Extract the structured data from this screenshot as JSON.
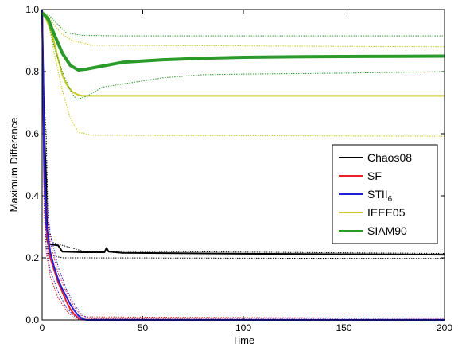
{
  "chart_data": {
    "type": "line",
    "title": "",
    "xlabel": "Time",
    "ylabel": "Maximum Difference",
    "xlim": [
      0,
      200
    ],
    "ylim": [
      0,
      1
    ],
    "x_ticks": [
      "0",
      "50",
      "100",
      "150",
      "200"
    ],
    "y_ticks": [
      "0.0",
      "0.2",
      "0.4",
      "0.6",
      "0.8",
      "1.0"
    ],
    "grid": false,
    "legend_position": "right",
    "series": [
      {
        "name": "Chaos08",
        "color": "#000000",
        "mean": [
          [
            0,
            1.0
          ],
          [
            1,
            0.62
          ],
          [
            2,
            0.45
          ],
          [
            2.5,
            0.26
          ],
          [
            3,
            0.245
          ],
          [
            8,
            0.24
          ],
          [
            10,
            0.22
          ],
          [
            20,
            0.218
          ],
          [
            31,
            0.218
          ],
          [
            32,
            0.232
          ],
          [
            33,
            0.22
          ],
          [
            40,
            0.216
          ],
          [
            100,
            0.213
          ],
          [
            200,
            0.21
          ]
        ],
        "upper": [
          [
            0,
            1.0
          ],
          [
            1,
            0.7
          ],
          [
            2,
            0.6
          ],
          [
            3,
            0.3
          ],
          [
            5,
            0.25
          ],
          [
            20,
            0.222
          ],
          [
            200,
            0.214
          ]
        ],
        "lower": [
          [
            0,
            1.0
          ],
          [
            1,
            0.5
          ],
          [
            2,
            0.3
          ],
          [
            3,
            0.21
          ],
          [
            10,
            0.2
          ],
          [
            200,
            0.198
          ]
        ]
      },
      {
        "name": "SF",
        "color": "#e8202a",
        "mean": [
          [
            0,
            1.0
          ],
          [
            1,
            0.45
          ],
          [
            2,
            0.3
          ],
          [
            4,
            0.2
          ],
          [
            6,
            0.16
          ],
          [
            8,
            0.12
          ],
          [
            10,
            0.09
          ],
          [
            12,
            0.06
          ],
          [
            14,
            0.035
          ],
          [
            16,
            0.018
          ],
          [
            18,
            0.006
          ],
          [
            20,
            0.001
          ],
          [
            200,
            0.0
          ]
        ],
        "upper": [
          [
            0,
            1.0
          ],
          [
            1,
            0.55
          ],
          [
            2,
            0.38
          ],
          [
            4,
            0.25
          ],
          [
            8,
            0.15
          ],
          [
            12,
            0.09
          ],
          [
            16,
            0.04
          ],
          [
            20,
            0.01
          ],
          [
            200,
            0.005
          ]
        ],
        "lower": [
          [
            0,
            1.0
          ],
          [
            1,
            0.35
          ],
          [
            2,
            0.22
          ],
          [
            4,
            0.14
          ],
          [
            8,
            0.07
          ],
          [
            12,
            0.03
          ],
          [
            16,
            0.005
          ],
          [
            20,
            0.0
          ],
          [
            200,
            0.0
          ]
        ]
      },
      {
        "name": "STII6",
        "label_main": "STII",
        "label_sub": "6",
        "color": "#2020d8",
        "mean": [
          [
            0,
            1.0
          ],
          [
            1,
            0.5
          ],
          [
            2,
            0.32
          ],
          [
            4,
            0.22
          ],
          [
            6,
            0.17
          ],
          [
            8,
            0.13
          ],
          [
            10,
            0.1
          ],
          [
            12,
            0.075
          ],
          [
            14,
            0.05
          ],
          [
            16,
            0.03
          ],
          [
            18,
            0.014
          ],
          [
            20,
            0.004
          ],
          [
            22,
            0.0
          ],
          [
            200,
            0.0
          ]
        ],
        "upper": [
          [
            0,
            1.0
          ],
          [
            1,
            0.6
          ],
          [
            2,
            0.4
          ],
          [
            4,
            0.28
          ],
          [
            8,
            0.17
          ],
          [
            12,
            0.1
          ],
          [
            16,
            0.05
          ],
          [
            20,
            0.015
          ],
          [
            24,
            0.005
          ],
          [
            200,
            0.005
          ]
        ],
        "lower": [
          [
            0,
            1.0
          ],
          [
            1,
            0.4
          ],
          [
            2,
            0.24
          ],
          [
            4,
            0.16
          ],
          [
            8,
            0.09
          ],
          [
            12,
            0.04
          ],
          [
            16,
            0.012
          ],
          [
            20,
            0.0
          ],
          [
            200,
            0.0
          ]
        ]
      },
      {
        "name": "IEEE05",
        "color": "#c8c81e",
        "mean": [
          [
            0,
            0.99
          ],
          [
            2,
            0.97
          ],
          [
            5,
            0.92
          ],
          [
            8,
            0.84
          ],
          [
            10,
            0.79
          ],
          [
            12,
            0.76
          ],
          [
            15,
            0.735
          ],
          [
            18,
            0.725
          ],
          [
            20,
            0.722
          ],
          [
            200,
            0.722
          ]
        ],
        "upper": [
          [
            0,
            0.99
          ],
          [
            3,
            0.98
          ],
          [
            6,
            0.95
          ],
          [
            10,
            0.92
          ],
          [
            15,
            0.9
          ],
          [
            25,
            0.885
          ],
          [
            200,
            0.88
          ]
        ],
        "lower": [
          [
            0,
            0.99
          ],
          [
            3,
            0.96
          ],
          [
            6,
            0.86
          ],
          [
            10,
            0.74
          ],
          [
            14,
            0.65
          ],
          [
            18,
            0.605
          ],
          [
            25,
            0.595
          ],
          [
            200,
            0.592
          ]
        ]
      },
      {
        "name": "SIAM90",
        "color": "#2a9a2a",
        "mean": [
          [
            0,
            0.99
          ],
          [
            3,
            0.97
          ],
          [
            6,
            0.92
          ],
          [
            10,
            0.86
          ],
          [
            14,
            0.82
          ],
          [
            18,
            0.805
          ],
          [
            22,
            0.808
          ],
          [
            30,
            0.818
          ],
          [
            40,
            0.83
          ],
          [
            60,
            0.838
          ],
          [
            80,
            0.843
          ],
          [
            100,
            0.846
          ],
          [
            130,
            0.848
          ],
          [
            160,
            0.849
          ],
          [
            200,
            0.85
          ]
        ],
        "upper": [
          [
            0,
            0.99
          ],
          [
            3,
            0.985
          ],
          [
            8,
            0.95
          ],
          [
            12,
            0.925
          ],
          [
            20,
            0.917
          ],
          [
            40,
            0.915
          ],
          [
            200,
            0.915
          ]
        ],
        "lower": [
          [
            0,
            0.99
          ],
          [
            3,
            0.96
          ],
          [
            6,
            0.88
          ],
          [
            10,
            0.8
          ],
          [
            14,
            0.74
          ],
          [
            17,
            0.71
          ],
          [
            22,
            0.72
          ],
          [
            30,
            0.75
          ],
          [
            40,
            0.76
          ],
          [
            60,
            0.78
          ],
          [
            80,
            0.79
          ],
          [
            100,
            0.792
          ],
          [
            150,
            0.795
          ],
          [
            200,
            0.8
          ]
        ]
      }
    ]
  }
}
